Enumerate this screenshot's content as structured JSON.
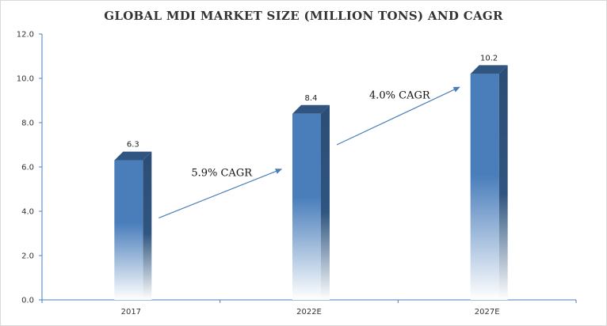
{
  "chart_data": {
    "type": "bar",
    "title": "GLOBAL MDI MARKET SIZE  (MILLION TONS) AND CAGR",
    "categories": [
      "2017",
      "2022E",
      "2027E"
    ],
    "values": [
      6.3,
      8.4,
      10.2
    ],
    "data_labels": [
      "6.3",
      "8.4",
      "10.2"
    ],
    "ylim": [
      0,
      12
    ],
    "yticks": [
      "0.0",
      "2.0",
      "4.0",
      "6.0",
      "8.0",
      "10.0",
      "12.0"
    ],
    "xlabel": "",
    "ylabel": "",
    "grid": false,
    "legend": "none",
    "bar_color": "#4a7ebb",
    "annotations": [
      {
        "text": "5.9% CAGR",
        "from": "2017",
        "to": "2022E"
      },
      {
        "text": "4.0% CAGR",
        "from": "2022E",
        "to": "2027E"
      }
    ]
  }
}
